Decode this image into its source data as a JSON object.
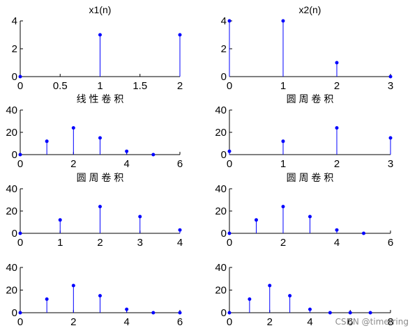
{
  "stem_color": "#0000ff",
  "watermark": "CSDN @timerring",
  "chart_data": [
    {
      "type": "stem",
      "title": "x1(n)",
      "xlim": [
        0,
        2
      ],
      "ylim": [
        0,
        4
      ],
      "xticks": [
        0,
        0.5,
        1,
        1.5,
        2
      ],
      "xtick_labels": [
        "0",
        "0.5",
        "1",
        "1.5",
        "2"
      ],
      "yticks": [
        0,
        2,
        4
      ],
      "ytick_labels": [
        "0",
        "2",
        "4"
      ],
      "x": [
        0,
        1,
        2
      ],
      "y": [
        0,
        3,
        3
      ]
    },
    {
      "type": "stem",
      "title": "x2(n)",
      "xlim": [
        0,
        3
      ],
      "ylim": [
        0,
        4
      ],
      "xticks": [
        0,
        1,
        2,
        3
      ],
      "xtick_labels": [
        "0",
        "1",
        "2",
        "3"
      ],
      "yticks": [
        0,
        2,
        4
      ],
      "ytick_labels": [
        "0",
        "2",
        "4"
      ],
      "x": [
        0,
        1,
        2,
        3
      ],
      "y": [
        4,
        4,
        1,
        0
      ]
    },
    {
      "type": "stem",
      "title": "线 性 卷 积",
      "xlim": [
        0,
        6
      ],
      "ylim": [
        0,
        40
      ],
      "xticks": [
        0,
        2,
        4,
        6
      ],
      "xtick_labels": [
        "0",
        "2",
        "4",
        "6"
      ],
      "yticks": [
        0,
        20,
        40
      ],
      "ytick_labels": [
        "0",
        "20",
        "40"
      ],
      "x": [
        0,
        1,
        2,
        3,
        4,
        5
      ],
      "y": [
        0,
        12,
        24,
        15,
        3,
        0
      ]
    },
    {
      "type": "stem",
      "title": "圆 周 卷 积",
      "xlim": [
        0,
        3
      ],
      "ylim": [
        0,
        40
      ],
      "xticks": [
        0,
        1,
        2,
        3
      ],
      "xtick_labels": [
        "0",
        "1",
        "2",
        "3"
      ],
      "yticks": [
        0,
        20,
        40
      ],
      "ytick_labels": [
        "0",
        "20",
        "40"
      ],
      "x": [
        0,
        1,
        2,
        3
      ],
      "y": [
        3,
        12,
        24,
        15
      ]
    },
    {
      "type": "stem",
      "title": "圆 周 卷 积",
      "xlim": [
        0,
        4
      ],
      "ylim": [
        0,
        40
      ],
      "xticks": [
        0,
        1,
        2,
        3,
        4
      ],
      "xtick_labels": [
        "0",
        "1",
        "2",
        "3",
        "4"
      ],
      "yticks": [
        0,
        20,
        40
      ],
      "ytick_labels": [
        "0",
        "20",
        "40"
      ],
      "x": [
        0,
        1,
        2,
        3,
        4
      ],
      "y": [
        0,
        12,
        24,
        15,
        3
      ]
    },
    {
      "type": "stem",
      "title": "圆 周 卷 积",
      "xlim": [
        0,
        6
      ],
      "ylim": [
        0,
        40
      ],
      "xticks": [
        0,
        2,
        4,
        6
      ],
      "xtick_labels": [
        "0",
        "2",
        "4",
        "6"
      ],
      "yticks": [
        0,
        20,
        40
      ],
      "ytick_labels": [
        "0",
        "20",
        "40"
      ],
      "x": [
        0,
        1,
        2,
        3,
        4,
        5
      ],
      "y": [
        0,
        12,
        24,
        15,
        3,
        0
      ]
    },
    {
      "type": "stem",
      "title": "",
      "xlim": [
        0,
        6
      ],
      "ylim": [
        0,
        40
      ],
      "xticks": [
        0,
        2,
        4,
        6
      ],
      "xtick_labels": [
        "0",
        "2",
        "4",
        "6"
      ],
      "yticks": [
        0,
        20,
        40
      ],
      "ytick_labels": [
        "0",
        "20",
        "40"
      ],
      "x": [
        0,
        1,
        2,
        3,
        4,
        5,
        6
      ],
      "y": [
        0,
        12,
        24,
        15,
        3,
        0,
        0
      ]
    },
    {
      "type": "stem",
      "title": "",
      "xlim": [
        0,
        8
      ],
      "ylim": [
        0,
        40
      ],
      "xticks": [
        0,
        2,
        4,
        6,
        8
      ],
      "xtick_labels": [
        "0",
        "2",
        "4",
        "6",
        "8"
      ],
      "yticks": [
        0,
        20,
        40
      ],
      "ytick_labels": [
        "0",
        "20",
        "40"
      ],
      "x": [
        0,
        1,
        2,
        3,
        4,
        5,
        6,
        7
      ],
      "y": [
        0,
        12,
        24,
        15,
        3,
        0,
        0,
        0
      ]
    }
  ]
}
